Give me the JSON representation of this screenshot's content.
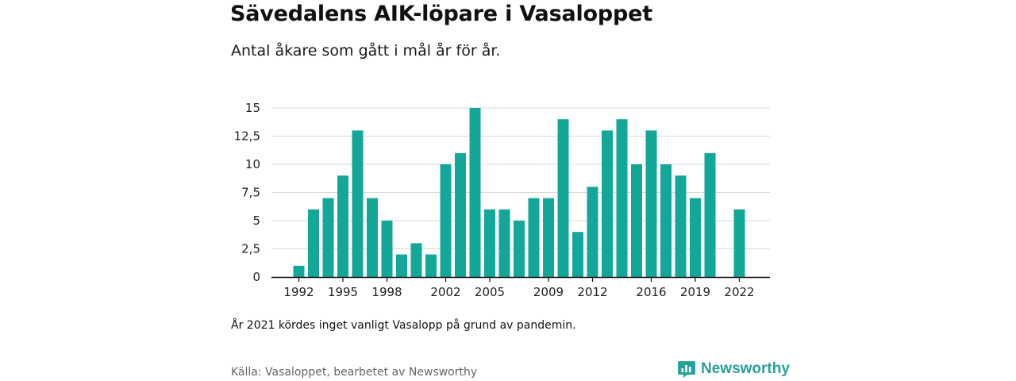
{
  "header": {
    "title": "Sävedalens AIK-löpare i Vasaloppet",
    "subtitle": "Antal åkare som gått i mål år för år."
  },
  "footer": {
    "note": "År 2021 kördes inget vanligt Vasalopp på grund av pandemin.",
    "source": "Källa: Vasaloppet, bearbetet av Newsworthy",
    "brand": "Newsworthy",
    "brand_icon": "newsworthy-logo-icon"
  },
  "colors": {
    "bar": "#13a79a",
    "grid": "#d9d9d9",
    "axis": "#111111",
    "brand": "#2aa198"
  },
  "chart_data": {
    "type": "bar",
    "title": "",
    "xlabel": "",
    "ylabel": "",
    "ylim": [
      0,
      15
    ],
    "yticks": [
      "0",
      "2,5",
      "5",
      "7,5",
      "10",
      "12,5",
      "15"
    ],
    "ytick_values": [
      0,
      2.5,
      5,
      7.5,
      10,
      12.5,
      15
    ],
    "xticks": [
      "1992",
      "1995",
      "1998",
      "2002",
      "2005",
      "2009",
      "2012",
      "2016",
      "2019",
      "2022"
    ],
    "grid": true,
    "categories": [
      1992,
      1993,
      1994,
      1995,
      1996,
      1997,
      1998,
      1999,
      2000,
      2001,
      2002,
      2003,
      2004,
      2005,
      2006,
      2007,
      2008,
      2009,
      2010,
      2011,
      2012,
      2013,
      2014,
      2015,
      2016,
      2017,
      2018,
      2019,
      2020,
      2021,
      2022
    ],
    "values": [
      1,
      6,
      7,
      9,
      13,
      7,
      5,
      2,
      3,
      2,
      10,
      11,
      15,
      6,
      6,
      5,
      7,
      7,
      14,
      4,
      8,
      13,
      14,
      10,
      13,
      10,
      9,
      7,
      11,
      null,
      6
    ]
  }
}
